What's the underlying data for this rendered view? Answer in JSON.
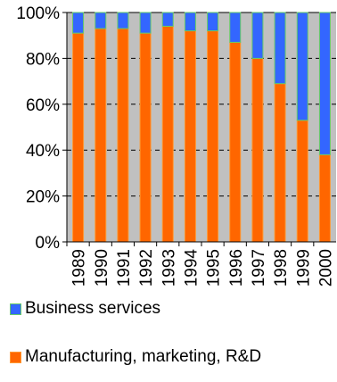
{
  "chart_data": {
    "type": "bar",
    "stacked": true,
    "categories": [
      "1989",
      "1990",
      "1991",
      "1992",
      "1993",
      "1994",
      "1995",
      "1996",
      "1997",
      "1998",
      "1999",
      "2000"
    ],
    "series": [
      {
        "name": "Manufacturing, marketing, R&D",
        "color": "#ff6600",
        "values": [
          91,
          93,
          93,
          91,
          94,
          92,
          92,
          87,
          80,
          69,
          53,
          38
        ]
      },
      {
        "name": "Business services",
        "color": "#3366ff",
        "values": [
          9,
          7,
          7,
          9,
          6,
          8,
          8,
          13,
          20,
          31,
          47,
          62
        ]
      }
    ],
    "ylim": [
      0,
      100
    ],
    "yticks": [
      "0%",
      "20%",
      "40%",
      "60%",
      "80%",
      "100%"
    ],
    "bar_edge_color": "#66cc66",
    "plot_background": "#c0c0c0",
    "grid": true,
    "legend_position": "bottom"
  }
}
